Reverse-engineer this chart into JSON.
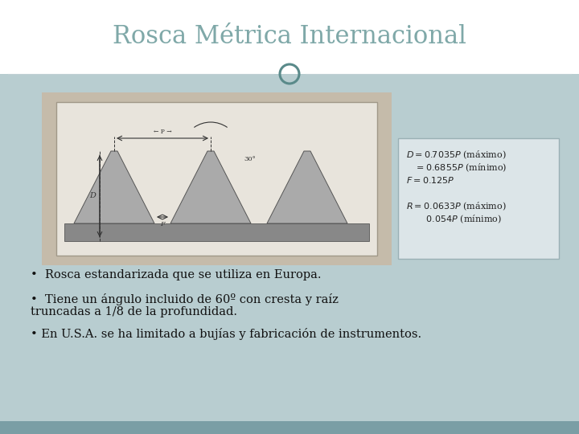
{
  "title": "Rosca Métrica Internacional",
  "title_color": "#7fa8a8",
  "slide_bg": "#b8cdd0",
  "header_bg": "#ffffff",
  "header_line_color": "#c0d0d4",
  "circle_color": "#5a8a8a",
  "bottom_bar_color": "#7a9ea5",
  "img_outer_bg": "#c5bbaa",
  "img_inner_bg": "#e8e4dc",
  "img_border": "#a09888",
  "tooth_fill": "#aaaaaa",
  "tooth_edge": "#555555",
  "base_fill": "#888888",
  "formula_box_bg": "#dce5e8",
  "formula_box_border": "#9ab0b5",
  "bullet1": "Rosca estandarizada que se utiliza en Europa.",
  "bullet2_line1": "Tiene un ángulo incluido de 60º con cresta y raíz",
  "bullet2_line2": "truncadas a 1/8 de la profundidad.",
  "bullet3": "En U.S.A. se ha limitado a bujías y fabricación de instrumentos.",
  "bullet_color": "#111111",
  "bullet_fontsize": 10.5,
  "formula_color": "#222222",
  "formula_fontsize": 8.0
}
